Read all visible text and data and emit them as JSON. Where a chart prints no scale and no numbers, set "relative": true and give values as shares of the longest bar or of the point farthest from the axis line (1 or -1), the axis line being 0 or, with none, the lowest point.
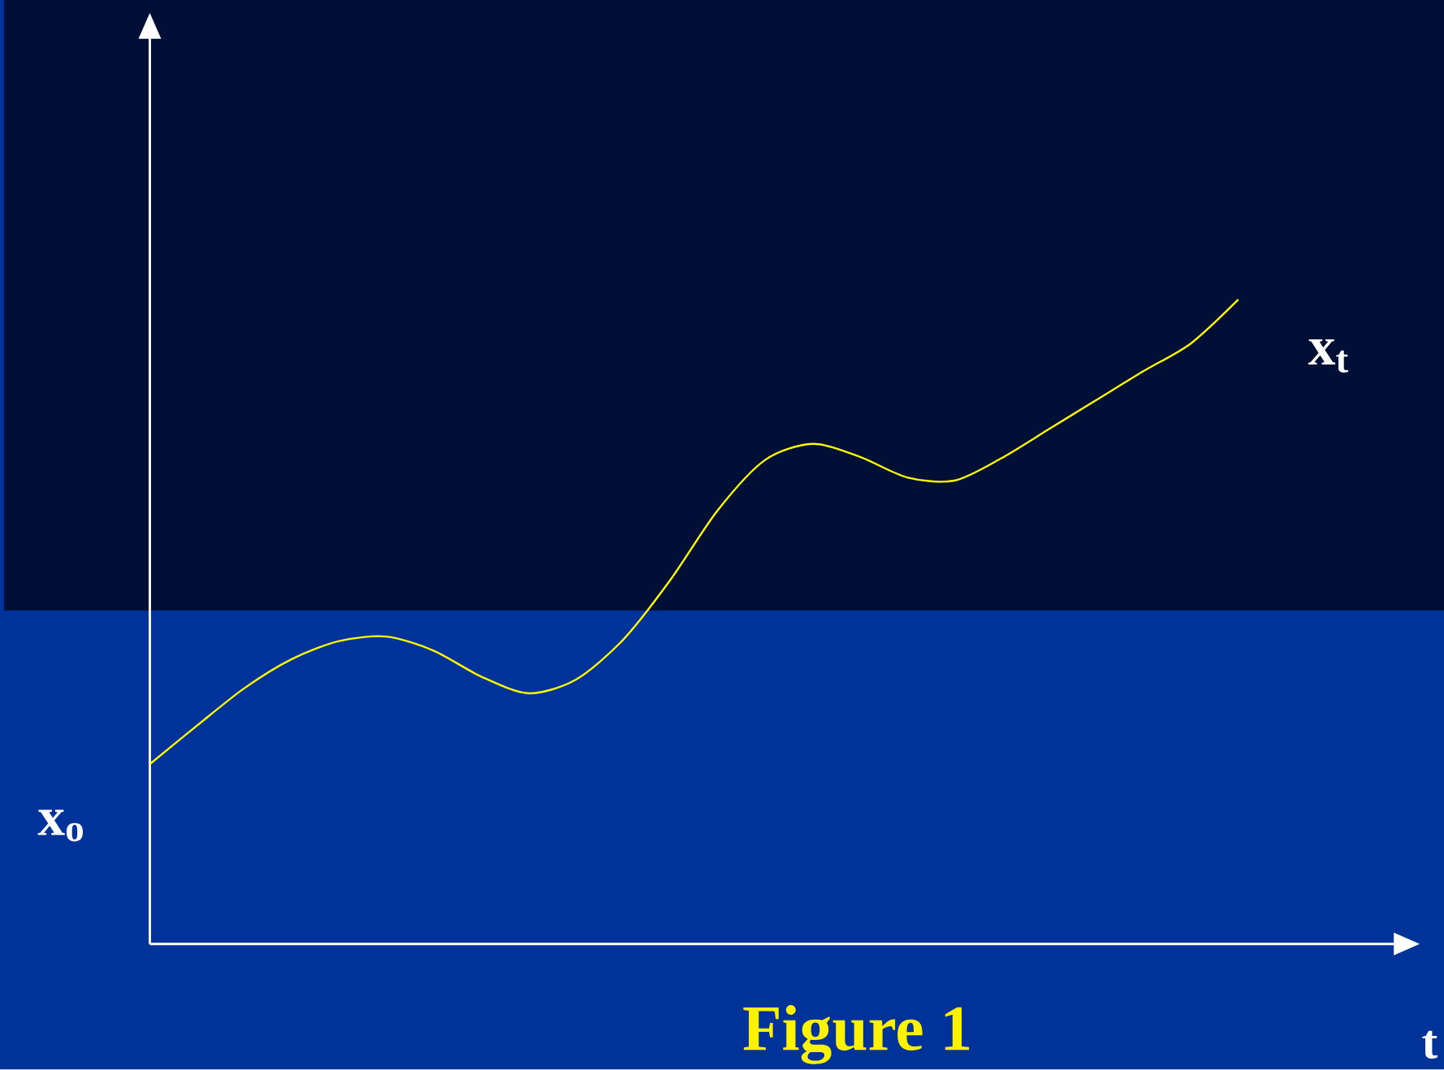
{
  "chart_data": {
    "type": "line",
    "relative": true,
    "xlabel": "t",
    "ylabel": "x$_{o}$",
    "annotations": [
      "x$_{t}$",
      "Figure 1"
    ],
    "categories": [
      null,
      null,
      null,
      null,
      null,
      null,
      null,
      null,
      null,
      null,
      null,
      null,
      null,
      null,
      null,
      null,
      null,
      null,
      null,
      null,
      null,
      null,
      null,
      null
    ],
    "series": [
      {
        "color": "#ffff00",
        "values": [
          0.279,
          0.339,
          0.397,
          0.442,
          0.47,
          0.477,
          0.455,
          0.415,
          0.389,
          0.41,
          0.472,
          0.565,
          0.673,
          0.751,
          0.776,
          0.756,
          0.724,
          0.719,
          0.754,
          0.799,
          0.844,
          0.889,
          0.932,
          1
        ]
      }
    ]
  }
}
